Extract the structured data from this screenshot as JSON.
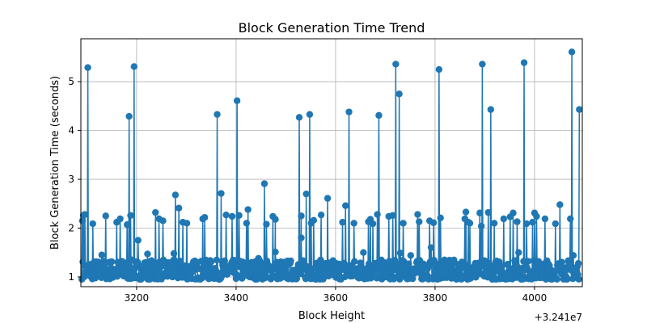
{
  "chart_data": {
    "type": "line",
    "title": "Block Generation Time Trend",
    "xlabel": "Block Height",
    "ylabel": "Block Generation Time (seconds)",
    "x_offset_label": "+3.241e7",
    "x_offset": 32410000,
    "xlim": [
      3088,
      4096
    ],
    "ylim": [
      0.8,
      5.88
    ],
    "xticks": [
      3200,
      3400,
      3600,
      3800,
      4000
    ],
    "yticks": [
      1,
      2,
      3,
      4,
      5
    ],
    "grid": true,
    "color": "#1f77b4",
    "x_start": 3090,
    "x_end": 4090,
    "baseline_min": 0.95,
    "baseline_max": 1.35,
    "spikes": [
      [
        3091,
        2.15
      ],
      [
        3093,
        2.26
      ],
      [
        3096,
        2.28
      ],
      [
        3102,
        5.29
      ],
      [
        3112,
        2.09
      ],
      [
        3130,
        1.45
      ],
      [
        3138,
        2.25
      ],
      [
        3160,
        2.12
      ],
      [
        3167,
        2.19
      ],
      [
        3181,
        2.07
      ],
      [
        3185,
        4.29
      ],
      [
        3188,
        2.26
      ],
      [
        3195,
        5.31
      ],
      [
        3203,
        1.75
      ],
      [
        3222,
        1.47
      ],
      [
        3238,
        2.32
      ],
      [
        3245,
        2.19
      ],
      [
        3253,
        2.15
      ],
      [
        3275,
        1.48
      ],
      [
        3278,
        2.68
      ],
      [
        3285,
        2.41
      ],
      [
        3293,
        2.12
      ],
      [
        3301,
        2.1
      ],
      [
        3333,
        2.19
      ],
      [
        3337,
        2.22
      ],
      [
        3362,
        4.33
      ],
      [
        3370,
        2.71
      ],
      [
        3380,
        2.27
      ],
      [
        3392,
        2.24
      ],
      [
        3402,
        4.61
      ],
      [
        3406,
        2.26
      ],
      [
        3421,
        2.1
      ],
      [
        3424,
        2.38
      ],
      [
        3445,
        1.38
      ],
      [
        3457,
        2.91
      ],
      [
        3461,
        2.08
      ],
      [
        3474,
        2.24
      ],
      [
        3479,
        2.18
      ],
      [
        3479,
        1.51
      ],
      [
        3527,
        4.27
      ],
      [
        3531,
        2.25
      ],
      [
        3531,
        1.8
      ],
      [
        3541,
        2.7
      ],
      [
        3548,
        4.33
      ],
      [
        3551,
        2.1
      ],
      [
        3556,
        2.16
      ],
      [
        3571,
        2.27
      ],
      [
        3584,
        2.61
      ],
      [
        3614,
        2.12
      ],
      [
        3620,
        2.46
      ],
      [
        3627,
        4.38
      ],
      [
        3637,
        2.1
      ],
      [
        3656,
        1.5
      ],
      [
        3666,
        2.13
      ],
      [
        3670,
        2.18
      ],
      [
        3675,
        2.09
      ],
      [
        3684,
        2.28
      ],
      [
        3687,
        4.31
      ],
      [
        3707,
        2.24
      ],
      [
        3715,
        2.26
      ],
      [
        3721,
        5.36
      ],
      [
        3728,
        4.75
      ],
      [
        3730,
        1.49
      ],
      [
        3736,
        2.1
      ],
      [
        3751,
        1.44
      ],
      [
        3765,
        2.28
      ],
      [
        3768,
        2.13
      ],
      [
        3789,
        2.15
      ],
      [
        3792,
        1.6
      ],
      [
        3797,
        2.11
      ],
      [
        3808,
        5.25
      ],
      [
        3811,
        2.21
      ],
      [
        3860,
        2.19
      ],
      [
        3862,
        2.33
      ],
      [
        3867,
        2.12
      ],
      [
        3870,
        2.1
      ],
      [
        3890,
        2.31
      ],
      [
        3893,
        2.04
      ],
      [
        3895,
        5.36
      ],
      [
        3907,
        2.32
      ],
      [
        3912,
        4.43
      ],
      [
        3919,
        2.1
      ],
      [
        3938,
        2.19
      ],
      [
        3951,
        2.23
      ],
      [
        3957,
        2.31
      ],
      [
        3965,
        2.13
      ],
      [
        3968,
        1.5
      ],
      [
        3979,
        5.39
      ],
      [
        3984,
        2.09
      ],
      [
        3996,
        2.12
      ],
      [
        4000,
        2.31
      ],
      [
        4004,
        2.24
      ],
      [
        4021,
        2.19
      ],
      [
        4042,
        2.09
      ],
      [
        4051,
        2.48
      ],
      [
        4072,
        2.19
      ],
      [
        4075,
        5.61
      ],
      [
        4078,
        1.44
      ],
      [
        4090,
        4.43
      ]
    ]
  }
}
